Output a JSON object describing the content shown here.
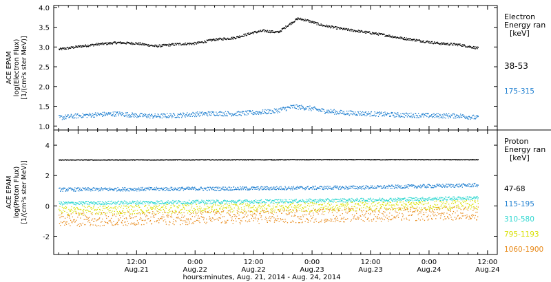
{
  "chart_data": [
    {
      "type": "scatter",
      "panel": "electron",
      "ylabel_lines": [
        "ACE EPAM",
        "log(Electron Flux)",
        "[1/(cm²s ster MeV)]"
      ],
      "legend_title_lines": [
        "Electron",
        "Energy ran",
        "[keV]"
      ],
      "legend_placement": "right",
      "ylim": [
        0.9,
        4.05
      ],
      "yticks": [
        "1.0",
        "1.5",
        "2.0",
        "2.5",
        "3.0",
        "3.5",
        "4.0"
      ],
      "grid": false,
      "series": [
        {
          "name": "38-53",
          "color": "#000000",
          "points": [
            [
              "2014-08-20T20:00",
              2.95
            ],
            [
              "2014-08-21T00:00",
              3.02
            ],
            [
              "2014-08-21T04:00",
              3.08
            ],
            [
              "2014-08-21T08:00",
              3.12
            ],
            [
              "2014-08-21T12:00",
              3.1
            ],
            [
              "2014-08-21T16:00",
              3.03
            ],
            [
              "2014-08-21T20:00",
              3.08
            ],
            [
              "2014-08-22T00:00",
              3.1
            ],
            [
              "2014-08-22T04:00",
              3.2
            ],
            [
              "2014-08-22T08:00",
              3.24
            ],
            [
              "2014-08-22T12:00",
              3.38
            ],
            [
              "2014-08-22T14:00",
              3.42
            ],
            [
              "2014-08-22T17:00",
              3.38
            ],
            [
              "2014-08-22T19:00",
              3.56
            ],
            [
              "2014-08-22T21:00",
              3.73
            ],
            [
              "2014-08-22T23:00",
              3.68
            ],
            [
              "2014-08-23T02:00",
              3.56
            ],
            [
              "2014-08-23T06:00",
              3.47
            ],
            [
              "2014-08-23T10:00",
              3.4
            ],
            [
              "2014-08-23T14:00",
              3.33
            ],
            [
              "2014-08-23T18:00",
              3.24
            ],
            [
              "2014-08-23T22:00",
              3.17
            ],
            [
              "2014-08-24T02:00",
              3.1
            ],
            [
              "2014-08-24T06:00",
              3.07
            ],
            [
              "2014-08-24T10:00",
              2.98
            ]
          ]
        },
        {
          "name": "175-315",
          "color": "#1f7fd0",
          "points": [
            [
              "2014-08-20T20:00",
              1.22
            ],
            [
              "2014-08-21T00:00",
              1.27
            ],
            [
              "2014-08-21T04:00",
              1.3
            ],
            [
              "2014-08-21T08:00",
              1.32
            ],
            [
              "2014-08-21T12:00",
              1.28
            ],
            [
              "2014-08-21T16:00",
              1.26
            ],
            [
              "2014-08-21T20:00",
              1.28
            ],
            [
              "2014-08-22T00:00",
              1.31
            ],
            [
              "2014-08-22T04:00",
              1.33
            ],
            [
              "2014-08-22T08:00",
              1.32
            ],
            [
              "2014-08-22T12:00",
              1.35
            ],
            [
              "2014-08-22T16:00",
              1.38
            ],
            [
              "2014-08-22T20:00",
              1.5
            ],
            [
              "2014-08-22T23:00",
              1.47
            ],
            [
              "2014-08-23T02:00",
              1.4
            ],
            [
              "2014-08-23T06:00",
              1.35
            ],
            [
              "2014-08-23T10:00",
              1.33
            ],
            [
              "2014-08-23T14:00",
              1.31
            ],
            [
              "2014-08-23T18:00",
              1.29
            ],
            [
              "2014-08-23T22:00",
              1.28
            ],
            [
              "2014-08-24T02:00",
              1.27
            ],
            [
              "2014-08-24T06:00",
              1.27
            ],
            [
              "2014-08-24T10:00",
              1.22
            ]
          ]
        }
      ]
    },
    {
      "type": "scatter",
      "panel": "proton",
      "ylabel_lines": [
        "ACE EPAM",
        "log(Proton Flux)",
        "[1/(cm²s ster MeV)]"
      ],
      "legend_title_lines": [
        "Proton",
        "Energy ran",
        "[keV]"
      ],
      "legend_placement": "right",
      "ylim": [
        -3.2,
        5.0
      ],
      "yticks": [
        "-2",
        "0",
        "2",
        "4"
      ],
      "grid": false,
      "series": [
        {
          "name": "47-68",
          "color": "#000000",
          "points": [
            [
              "2014-08-20T20:00",
              3.05
            ],
            [
              "2014-08-22T00:00",
              3.06
            ],
            [
              "2014-08-23T00:00",
              3.07
            ],
            [
              "2014-08-24T10:00",
              3.07
            ]
          ]
        },
        {
          "name": "115-195",
          "color": "#1f7fd0",
          "points": [
            [
              "2014-08-20T20:00",
              1.1
            ],
            [
              "2014-08-21T12:00",
              1.13
            ],
            [
              "2014-08-22T12:00",
              1.18
            ],
            [
              "2014-08-23T12:00",
              1.25
            ],
            [
              "2014-08-24T10:00",
              1.4
            ]
          ]
        },
        {
          "name": "310-580",
          "color": "#2ed7d0",
          "points": [
            [
              "2014-08-20T20:00",
              0.2
            ],
            [
              "2014-08-21T12:00",
              0.25
            ],
            [
              "2014-08-22T12:00",
              0.32
            ],
            [
              "2014-08-23T12:00",
              0.42
            ],
            [
              "2014-08-24T10:00",
              0.55
            ]
          ]
        },
        {
          "name": "795-1193",
          "color": "#d8e000",
          "points": [
            [
              "2014-08-20T20:00",
              -0.3
            ],
            [
              "2014-08-21T12:00",
              -0.2
            ],
            [
              "2014-08-22T12:00",
              -0.1
            ],
            [
              "2014-08-23T12:00",
              0.0
            ],
            [
              "2014-08-24T10:00",
              0.1
            ]
          ]
        },
        {
          "name": "1060-1900",
          "color": "#e88a1a",
          "points": [
            [
              "2014-08-20T20:00",
              -0.9
            ],
            [
              "2014-08-21T12:00",
              -0.8
            ],
            [
              "2014-08-22T12:00",
              -0.7
            ],
            [
              "2014-08-23T12:00",
              -0.55
            ],
            [
              "2014-08-24T10:00",
              -0.45
            ]
          ]
        }
      ]
    }
  ],
  "x_axis": {
    "xlim": [
      "2014-08-20T19:00",
      "2014-08-24T14:00"
    ],
    "tick_labels": [
      {
        "time": "2014-08-21T12:00",
        "top": "12:00",
        "bottom": "Aug.21"
      },
      {
        "time": "2014-08-22T00:00",
        "top": "0:00",
        "bottom": "Aug.22"
      },
      {
        "time": "2014-08-22T12:00",
        "top": "12:00",
        "bottom": "Aug.22"
      },
      {
        "time": "2014-08-23T00:00",
        "top": "0:00",
        "bottom": "Aug.23"
      },
      {
        "time": "2014-08-23T12:00",
        "top": "12:00",
        "bottom": "Aug.23"
      },
      {
        "time": "2014-08-24T00:00",
        "top": "0:00",
        "bottom": "Aug.24"
      },
      {
        "time": "2014-08-24T12:00",
        "top": "12:00",
        "bottom": "Aug.24"
      }
    ],
    "label": "hours:minutes, Aug. 21, 2014 - Aug. 24, 2014"
  }
}
